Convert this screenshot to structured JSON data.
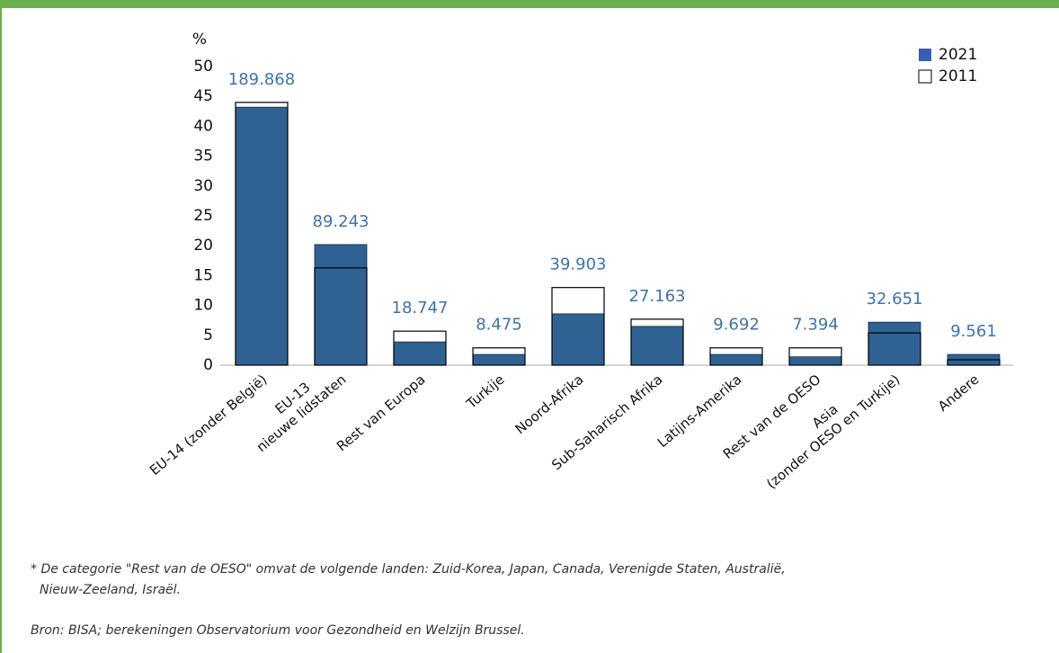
{
  "chart_data": {
    "type": "bar",
    "y_label": "%",
    "categories": [
      [
        "EU-14 (zonder België)"
      ],
      [
        "EU-13",
        "nieuwe lidstaten"
      ],
      [
        "Rest van Europa"
      ],
      [
        "Turkije"
      ],
      [
        "Noord-Afrika"
      ],
      [
        "Sub-Saharisch Afrika"
      ],
      [
        "Latijns-Amerika"
      ],
      [
        "Rest van de OESO"
      ],
      [
        "Asia",
        "(zonder OESO en Turkije)"
      ],
      [
        "Andere"
      ]
    ],
    "series": [
      {
        "name": "2021",
        "color": "#2f6193",
        "values": [
          43.2,
          20.2,
          3.9,
          1.8,
          8.6,
          6.5,
          1.8,
          1.4,
          7.2,
          1.8
        ]
      },
      {
        "name": "2011",
        "color": "#ffffff",
        "values": [
          44.0,
          16.3,
          5.7,
          2.9,
          13.0,
          7.7,
          2.9,
          2.9,
          5.4,
          0.9
        ]
      }
    ],
    "count_labels": [
      "189.868",
      "89.243",
      "18.747",
      "8.475",
      "39.903",
      "27.163",
      "9.692",
      "7.394",
      "32.651",
      "9.561"
    ],
    "ylim": [
      0,
      50
    ],
    "yticks": [
      0,
      5,
      10,
      15,
      20,
      25,
      30,
      35,
      40,
      45,
      50
    ],
    "legend": "top-right",
    "notes": [
      "* De categorie \"Rest van de OESO\" omvat de volgende landen: Zuid-Korea, Japan, Canada, Verenigde Staten, Australië,",
      "Nieuw-Zeeland, Israël.",
      "Bron: BISA; berekeningen Observatorium voor Gezondheid en Welzijn Brussel."
    ]
  }
}
